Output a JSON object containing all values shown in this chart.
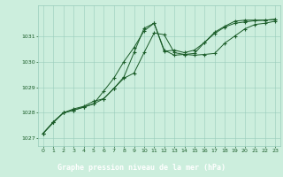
{
  "bg_color": "#cceedd",
  "plot_bg_color": "#cceedd",
  "bottom_bar_color": "#2d6e3a",
  "grid_color": "#99ccbb",
  "line_color": "#1a5c28",
  "marker_color": "#1a5c28",
  "xlabel": "Graphe pression niveau de la mer (hPa)",
  "xlabel_color": "#ffffff",
  "ylim": [
    1026.7,
    1032.2
  ],
  "xlim": [
    -0.5,
    23.5
  ],
  "yticks": [
    1027,
    1028,
    1029,
    1030,
    1031
  ],
  "xticks": [
    0,
    1,
    2,
    3,
    4,
    5,
    6,
    7,
    8,
    9,
    10,
    11,
    12,
    13,
    14,
    15,
    16,
    17,
    18,
    19,
    20,
    21,
    22,
    23
  ],
  "tick_color": "#1a5c28",
  "tick_fontsize": 4.5,
  "label_fontsize": 6.0,
  "series1": [
    1027.2,
    1027.65,
    1028.0,
    1028.15,
    1028.25,
    1028.45,
    1028.55,
    1028.95,
    1029.4,
    1030.35,
    1031.3,
    1031.5,
    1030.4,
    1030.45,
    1030.35,
    1030.45,
    1030.75,
    1031.1,
    1031.35,
    1031.5,
    1031.55,
    1031.6,
    1031.62,
    1031.65
  ],
  "series2": [
    1027.2,
    1027.62,
    1028.0,
    1028.1,
    1028.22,
    1028.35,
    1028.85,
    1029.35,
    1030.0,
    1030.55,
    1031.2,
    1031.5,
    1030.45,
    1030.25,
    1030.28,
    1030.32,
    1030.75,
    1031.15,
    1031.38,
    1031.58,
    1031.62,
    1031.62,
    1031.62,
    1031.65
  ],
  "series3": [
    1027.2,
    1027.62,
    1028.0,
    1028.1,
    1028.22,
    1028.35,
    1028.55,
    1028.95,
    1029.35,
    1029.55,
    1030.35,
    1031.12,
    1031.05,
    1030.35,
    1030.28,
    1030.25,
    1030.28,
    1030.32,
    1030.72,
    1031.0,
    1031.28,
    1031.45,
    1031.5,
    1031.58
  ]
}
